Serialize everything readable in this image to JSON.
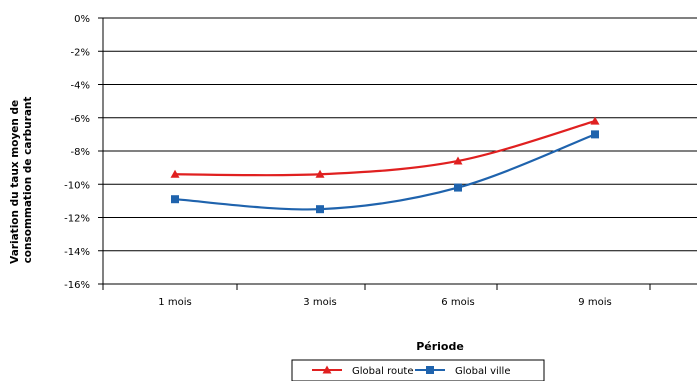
{
  "chart_data": {
    "type": "line",
    "title": "",
    "xlabel": "Période",
    "ylabel_lines": [
      "Variation du taux moyen de",
      "consommation de carburant"
    ],
    "categories": [
      "1 mois",
      "3 mois",
      "6 mois",
      "9 mois"
    ],
    "yticks": [
      "0%",
      "-2%",
      "-4%",
      "-6%",
      "-8%",
      "-10%",
      "-12%",
      "-14%",
      "-16%"
    ],
    "ylim": [
      -16,
      0
    ],
    "grid": true,
    "legend_position": "bottom",
    "series": [
      {
        "name": "Global route",
        "color": "#e02020",
        "marker": "triangle",
        "values": [
          -9.4,
          -9.4,
          -8.6,
          -6.2
        ]
      },
      {
        "name": "Global ville",
        "color": "#1f63ad",
        "marker": "square",
        "values": [
          -10.9,
          -11.5,
          -10.2,
          -7.0
        ]
      }
    ]
  }
}
